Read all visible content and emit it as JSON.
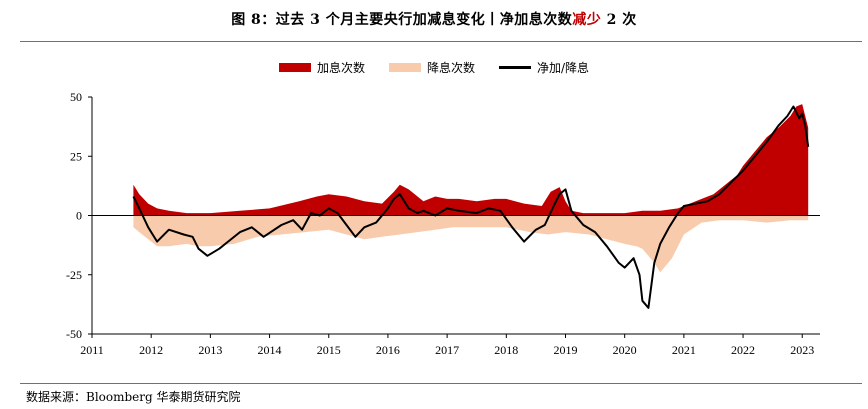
{
  "title": {
    "prefix": "图 8：过去 3 个月主要央行加减息变化丨净加息次数",
    "highlight": "减少",
    "suffix": " 2 次"
  },
  "source": "数据来源：Bloomberg 华泰期货研究院",
  "legend": {
    "hike": "加息次数",
    "cut": "降息次数",
    "net": "净加/降息"
  },
  "colors": {
    "hike": "#c00000",
    "cut": "#f8cbad",
    "net": "#000000",
    "accent": "#c00000"
  },
  "chart_data": {
    "type": "area",
    "xlim": [
      2011,
      2023.3
    ],
    "ylim": [
      -50,
      50
    ],
    "yticks": [
      50,
      25,
      0,
      -25,
      -50
    ],
    "xticks": [
      "2011",
      "2012",
      "2013",
      "2014",
      "2015",
      "2016",
      "2017",
      "2018",
      "2019",
      "2020",
      "2021",
      "2022",
      "2023"
    ],
    "series": [
      {
        "name": "加息次数",
        "x": [
          2011.7,
          2011.8,
          2011.95,
          2012.1,
          2012.3,
          2012.6,
          2013.0,
          2013.5,
          2014.0,
          2014.5,
          2014.8,
          2015.0,
          2015.3,
          2015.6,
          2015.9,
          2016.1,
          2016.2,
          2016.35,
          2016.6,
          2016.8,
          2017.0,
          2017.2,
          2017.5,
          2017.8,
          2018.0,
          2018.3,
          2018.6,
          2018.75,
          2018.9,
          2019.0,
          2019.1,
          2019.3,
          2019.6,
          2020.0,
          2020.3,
          2020.6,
          2020.9,
          2021.0,
          2021.3,
          2021.5,
          2021.7,
          2021.9,
          2022.0,
          2022.2,
          2022.4,
          2022.6,
          2022.8,
          2022.9,
          2023.0,
          2023.1
        ],
        "values": [
          13,
          9,
          5,
          3,
          2,
          1,
          1,
          2,
          3,
          6,
          8,
          9,
          8,
          6,
          5,
          10,
          13,
          11,
          6,
          8,
          7,
          7,
          6,
          7,
          7,
          5,
          4,
          10,
          12,
          6,
          2,
          1,
          1,
          1,
          2,
          2,
          3,
          4,
          7,
          9,
          13,
          17,
          21,
          27,
          33,
          37,
          42,
          46,
          47,
          37
        ]
      },
      {
        "name": "降息次数",
        "x": [
          2011.7,
          2011.8,
          2011.95,
          2012.1,
          2012.3,
          2012.6,
          2012.8,
          2013.0,
          2013.4,
          2013.8,
          2014.2,
          2014.6,
          2015.0,
          2015.3,
          2015.6,
          2015.9,
          2016.2,
          2016.5,
          2016.8,
          2017.1,
          2017.4,
          2017.7,
          2018.0,
          2018.4,
          2018.7,
          2019.0,
          2019.4,
          2019.7,
          2020.0,
          2020.2,
          2020.3,
          2020.5,
          2020.6,
          2020.8,
          2021.0,
          2021.3,
          2021.6,
          2022.0,
          2022.4,
          2022.8,
          2023.1
        ],
        "values": [
          -5,
          -7,
          -10,
          -13,
          -13,
          -12,
          -13,
          -13,
          -12,
          -9,
          -8,
          -7,
          -6,
          -8,
          -10,
          -9,
          -8,
          -7,
          -6,
          -5,
          -5,
          -5,
          -5,
          -7,
          -8,
          -7,
          -8,
          -10,
          -12,
          -13,
          -14,
          -20,
          -24,
          -18,
          -8,
          -3,
          -2,
          -2,
          -3,
          -2,
          -2
        ]
      },
      {
        "name": "净加/降息",
        "x": [
          2011.7,
          2011.8,
          2011.95,
          2012.1,
          2012.3,
          2012.55,
          2012.7,
          2012.8,
          2012.95,
          2013.15,
          2013.3,
          2013.5,
          2013.7,
          2013.9,
          2014.2,
          2014.4,
          2014.55,
          2014.7,
          2014.85,
          2015.0,
          2015.15,
          2015.3,
          2015.45,
          2015.6,
          2015.8,
          2016.0,
          2016.1,
          2016.2,
          2016.35,
          2016.5,
          2016.6,
          2016.8,
          2017.0,
          2017.2,
          2017.5,
          2017.7,
          2017.9,
          2018.1,
          2018.3,
          2018.5,
          2018.65,
          2018.8,
          2018.9,
          2019.0,
          2019.1,
          2019.3,
          2019.5,
          2019.7,
          2019.9,
          2020.0,
          2020.15,
          2020.25,
          2020.3,
          2020.4,
          2020.5,
          2020.6,
          2020.75,
          2020.9,
          2021.0,
          2021.2,
          2021.4,
          2021.6,
          2021.8,
          2022.0,
          2022.2,
          2022.4,
          2022.6,
          2022.75,
          2022.85,
          2022.95,
          2023.0,
          2023.05,
          2023.1
        ],
        "values": [
          8,
          3,
          -5,
          -11,
          -6,
          -8,
          -9,
          -14,
          -17,
          -14,
          -11,
          -7,
          -5,
          -9,
          -4,
          -2,
          -6,
          1,
          0,
          3,
          1,
          -4,
          -9,
          -5,
          -3,
          3,
          7,
          9,
          3,
          1,
          2,
          0,
          3,
          2,
          1,
          3,
          2,
          -5,
          -11,
          -6,
          -4,
          4,
          9,
          11,
          2,
          -4,
          -7,
          -13,
          -20,
          -22,
          -18,
          -25,
          -36,
          -39,
          -20,
          -12,
          -5,
          1,
          4,
          5,
          6,
          9,
          14,
          19,
          25,
          31,
          38,
          42,
          46,
          41,
          43,
          38,
          29
        ]
      }
    ]
  }
}
